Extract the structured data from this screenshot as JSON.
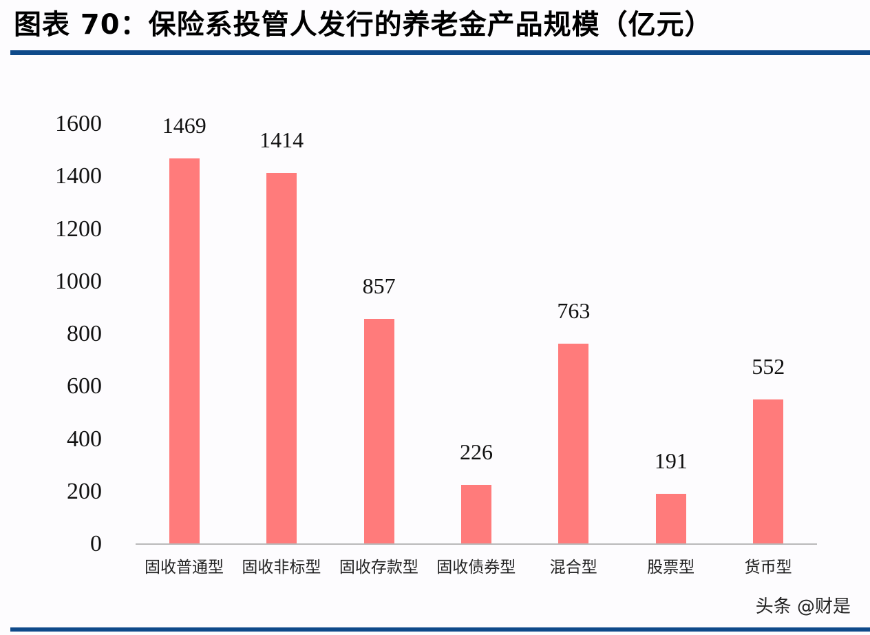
{
  "header": {
    "title": "图表 70：保险系投管人发行的养老金产品规模（亿元）"
  },
  "footer": {
    "watermark": "头条 @财是"
  },
  "colors": {
    "bar": "#ff7b7b",
    "rule": "#0f4a8a",
    "axis": "#b9b9b9"
  },
  "chart_data": {
    "type": "bar",
    "title": "图表 70：保险系投管人发行的养老金产品规模（亿元）",
    "xlabel": "",
    "ylabel": "亿元",
    "categories": [
      "固收普通型",
      "固收非标型",
      "固收存款型",
      "固收债券型",
      "混合型",
      "股票型",
      "货币型"
    ],
    "values": [
      1469,
      1414,
      857,
      226,
      763,
      191,
      552
    ],
    "data_labels": [
      "1469",
      "1414",
      "857",
      "226",
      "763",
      "191",
      "552"
    ],
    "ylim": [
      0,
      1600
    ],
    "yticks": [
      "0",
      "200",
      "400",
      "600",
      "800",
      "1000",
      "1200",
      "1400",
      "1600"
    ],
    "grid": false,
    "legend": null
  }
}
